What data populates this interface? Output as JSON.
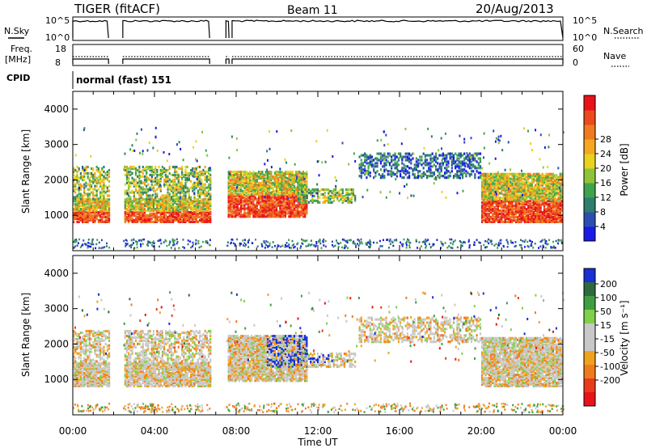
{
  "header": {
    "title": "TIGER (fitACF)",
    "beam": "Beam 11",
    "date": "20/Aug/2013"
  },
  "params": {
    "nsky_label": "N.Sky",
    "nsearch_label": "N.Search",
    "freq_label_1": "Freq.",
    "freq_label_2": "[MHz]",
    "nave_label": "Nave",
    "cpid_label": "CPID",
    "cpid_value": "normal (fast) 151",
    "nsky_ticks": [
      "10^5",
      "10^0"
    ],
    "nsearch_ticks": [
      "10^5",
      "10^0"
    ],
    "freq_ticks": [
      "18",
      "8"
    ],
    "nave_ticks": [
      "60",
      "0"
    ]
  },
  "chart_data": [
    {
      "type": "heatmap",
      "quantity": "power",
      "ylabel": "Slant Range [km]",
      "xlabel": "",
      "x_range_hours": [
        0,
        24
      ],
      "ylim": [
        0,
        4500
      ],
      "yticks": [
        1000,
        2000,
        3000,
        4000
      ],
      "colorbar": {
        "label": "Power [dB]",
        "ticks": [
          4,
          8,
          12,
          16,
          20,
          24,
          28
        ],
        "colors": [
          "#1a1ae6",
          "#2b4fb0",
          "#2e7d6e",
          "#3fa34d",
          "#8fc43a",
          "#e8d21e",
          "#f5a623",
          "#f07a1e",
          "#ea4a1c",
          "#e8131a"
        ]
      },
      "data_gaps_hours": [
        [
          1.75,
          2.45
        ],
        [
          6.7,
          7.5
        ]
      ],
      "echo_regions": [
        {
          "x": [
            0.0,
            6.7
          ],
          "y": [
            850,
            1500
          ],
          "level": "high"
        },
        {
          "x": [
            0.0,
            6.7
          ],
          "y": [
            1500,
            2400
          ],
          "level": "medium"
        },
        {
          "x": [
            7.5,
            11.5
          ],
          "y": [
            1000,
            2300
          ],
          "level": "high"
        },
        {
          "x": [
            11.0,
            13.8
          ],
          "y": [
            1400,
            1800
          ],
          "level": "medium"
        },
        {
          "x": [
            14.0,
            20.0
          ],
          "y": [
            2100,
            2800
          ],
          "level": "low"
        },
        {
          "x": [
            20.0,
            24.0
          ],
          "y": [
            850,
            2200
          ],
          "level": "high"
        }
      ]
    },
    {
      "type": "heatmap",
      "quantity": "velocity",
      "ylabel": "Slant Range [km]",
      "xlabel": "Time UT",
      "x_range_hours": [
        0,
        24
      ],
      "ylim": [
        0,
        4500
      ],
      "yticks": [
        1000,
        2000,
        3000,
        4000
      ],
      "xticks": [
        "00:00",
        "04:00",
        "08:00",
        "12:00",
        "16:00",
        "20:00",
        "00:00"
      ],
      "colorbar": {
        "label": "Velocity [m s⁻¹]",
        "ticks": [
          200,
          100,
          50,
          15,
          -15,
          -50,
          -100,
          -200
        ],
        "colors": [
          "#1a2fd6",
          "#2e6a3e",
          "#3f9e3f",
          "#7fd04a",
          "#c8c8c8",
          "#c8c8c8",
          "#f0a21e",
          "#f07a1e",
          "#ea3a1c",
          "#e8131a"
        ]
      }
    }
  ]
}
